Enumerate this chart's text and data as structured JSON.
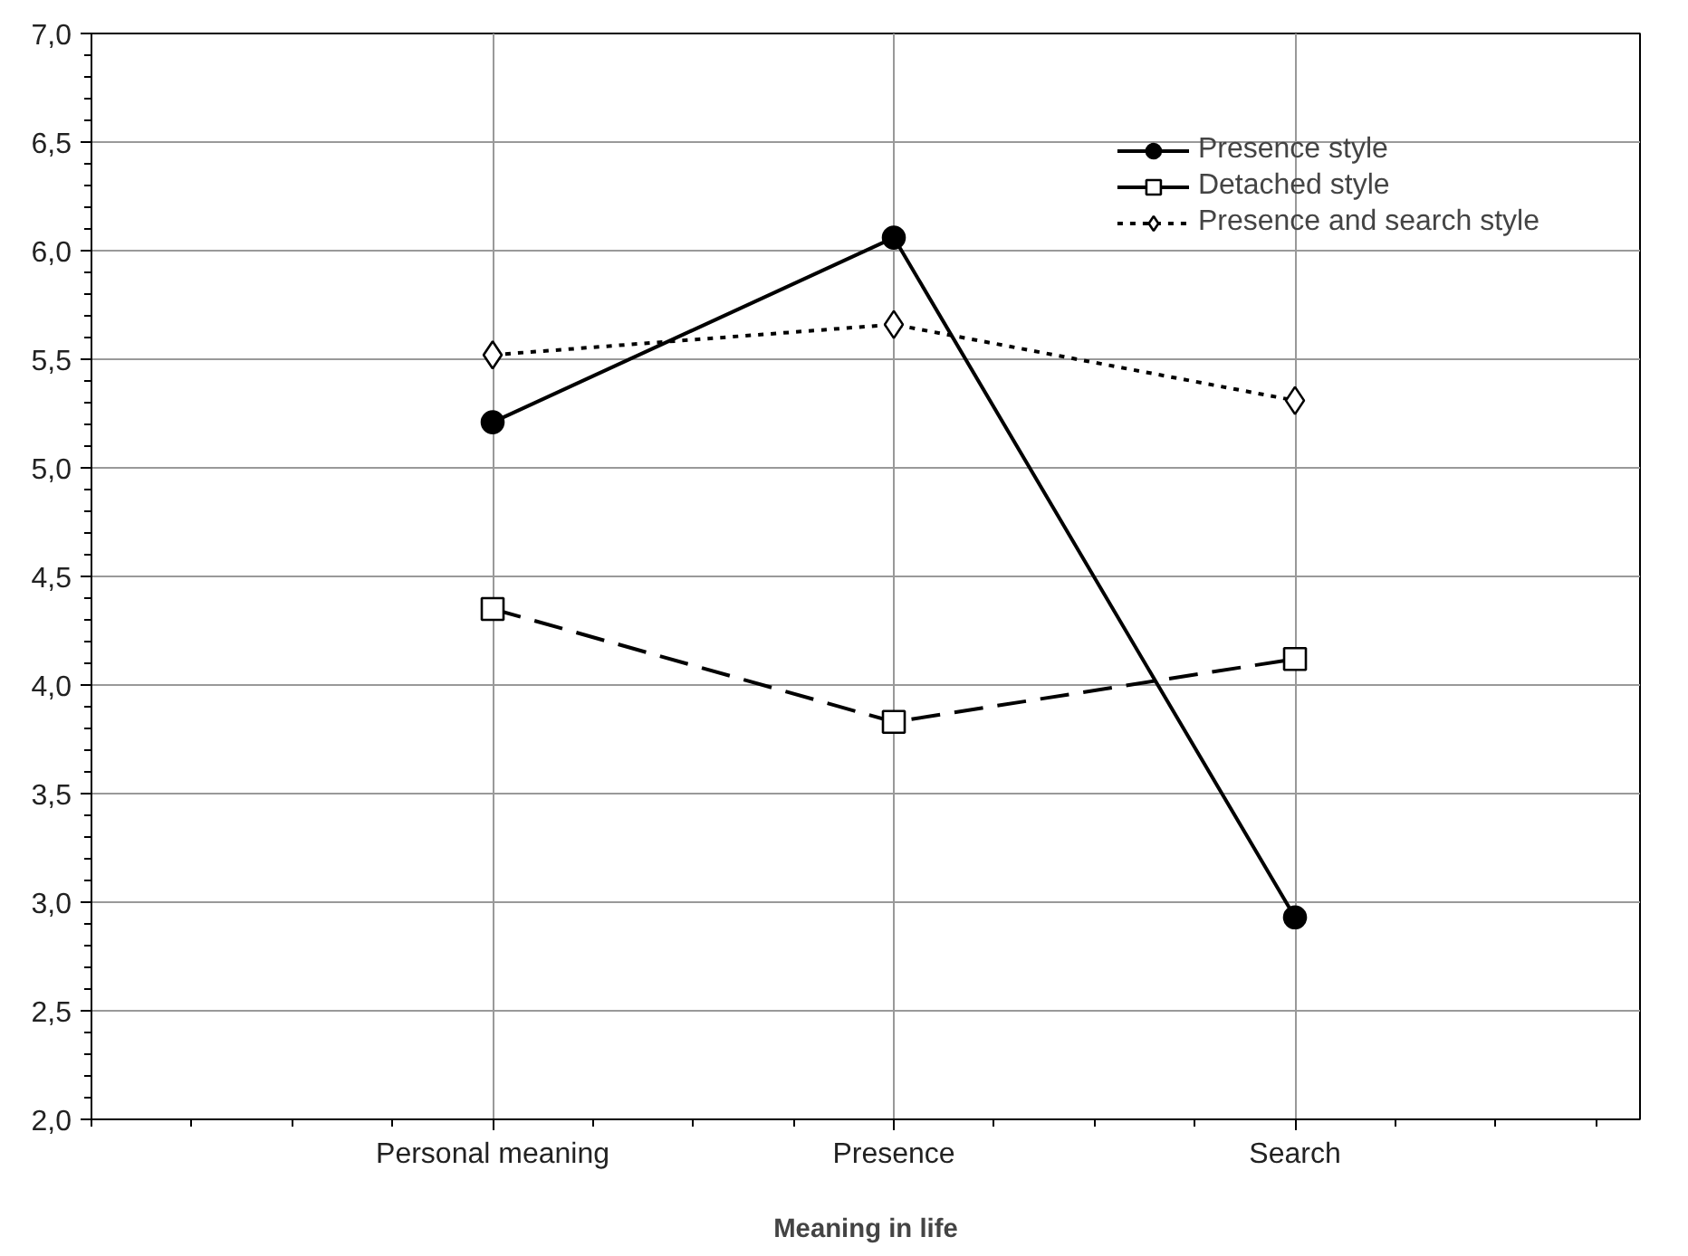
{
  "chart_data": {
    "type": "line",
    "xlabel": "Meaning in life",
    "categories": [
      "Personal meaning",
      "Presence",
      "Search"
    ],
    "ylim": [
      2,
      7
    ],
    "yticks": [
      {
        "value": 2,
        "label": "2,0"
      },
      {
        "value": 2.5,
        "label": "2,5"
      },
      {
        "value": 3,
        "label": "3,0"
      },
      {
        "value": 3.5,
        "label": "3,5"
      },
      {
        "value": 4,
        "label": "4,0"
      },
      {
        "value": 4.5,
        "label": "4,5"
      },
      {
        "value": 5,
        "label": "5,0"
      },
      {
        "value": 5.5,
        "label": "5,5"
      },
      {
        "value": 6,
        "label": "6,0"
      },
      {
        "value": 6.5,
        "label": "6,5"
      },
      {
        "value": 7,
        "label": "7,0"
      }
    ],
    "grid": true,
    "legend": "top right",
    "series": [
      {
        "name": "Presence style",
        "color": "#000000",
        "marker": "circle",
        "line_style": "solid",
        "values": [
          5.21,
          6.06,
          2.93
        ]
      },
      {
        "name": "Detached style",
        "color": "#000000",
        "marker": "square",
        "line_style": "dashed",
        "values": [
          4.35,
          3.83,
          4.12
        ]
      },
      {
        "name": "Presence and search style",
        "color": "#000000",
        "marker": "diamond",
        "line_style": "dotted",
        "values": [
          5.52,
          5.66,
          5.31
        ]
      }
    ]
  }
}
